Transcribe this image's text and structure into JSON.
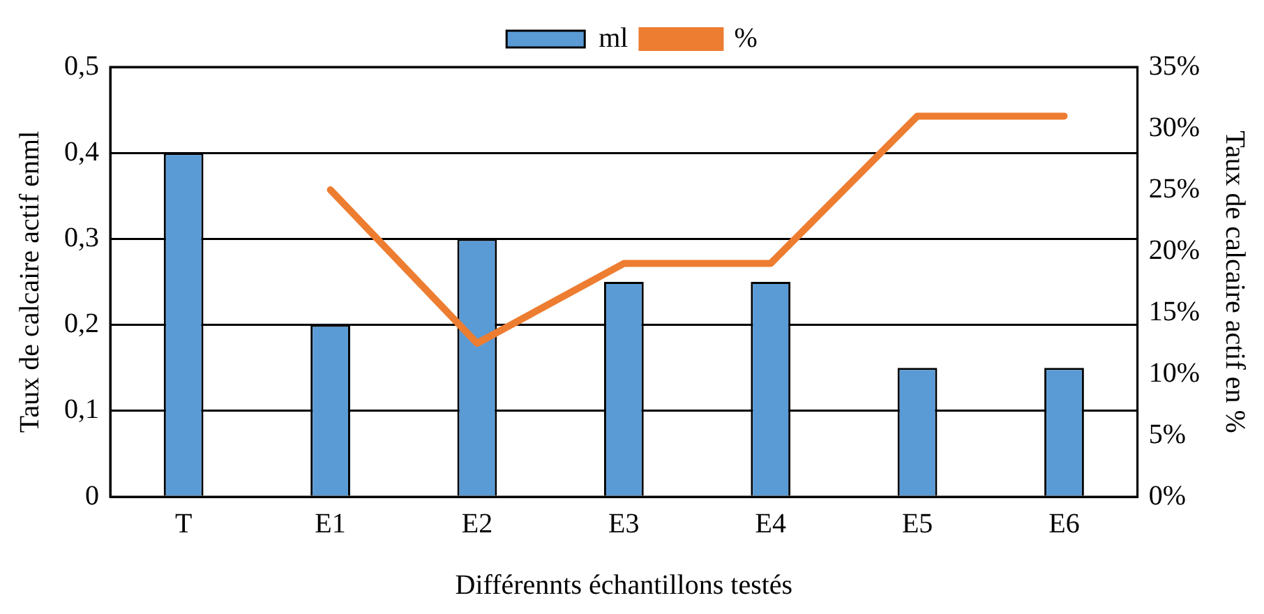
{
  "chart_data": {
    "type": "bar",
    "categories": [
      "T",
      "E1",
      "E2",
      "E3",
      "E4",
      "E5",
      "E6"
    ],
    "xlabel": "Différennts échantillons testés",
    "ylabel": "Taux de calcaire actif enml",
    "y2label": "Taux de calcaire actif en %",
    "series": [
      {
        "name": "ml",
        "color": "#5b9bd5",
        "values": [
          0.4,
          0.2,
          0.3,
          0.25,
          0.25,
          0.15,
          0.15
        ]
      },
      {
        "name": "%",
        "type": "line",
        "axis": "y2",
        "color": "#ed7d31",
        "values": [
          null,
          25,
          12.5,
          19,
          19,
          31,
          31
        ]
      }
    ],
    "ylim": [
      0,
      0.5
    ],
    "yticks": [
      0,
      {
        "value": 0.1,
        "label": "0,1"
      },
      {
        "value": 0.2,
        "label": "0,2"
      },
      {
        "value": 0.3,
        "label": "0,3"
      },
      {
        "value": 0.4,
        "label": "0,4"
      },
      {
        "value": 0.5,
        "label": "0,5"
      }
    ],
    "y2lim": [
      0,
      35
    ],
    "y2ticks": [
      {
        "value": 0,
        "label": "0%"
      },
      {
        "value": 5,
        "label": "5%"
      },
      {
        "value": 10,
        "label": "10%"
      },
      {
        "value": 15,
        "label": "15%"
      },
      {
        "value": 20,
        "label": "20%"
      },
      {
        "value": 25,
        "label": "25%"
      },
      {
        "value": 30,
        "label": "30%"
      },
      {
        "value": 35,
        "label": "35%"
      }
    ],
    "grid": "y",
    "legend": "top",
    "marker": "none",
    "line_style": "solid"
  }
}
